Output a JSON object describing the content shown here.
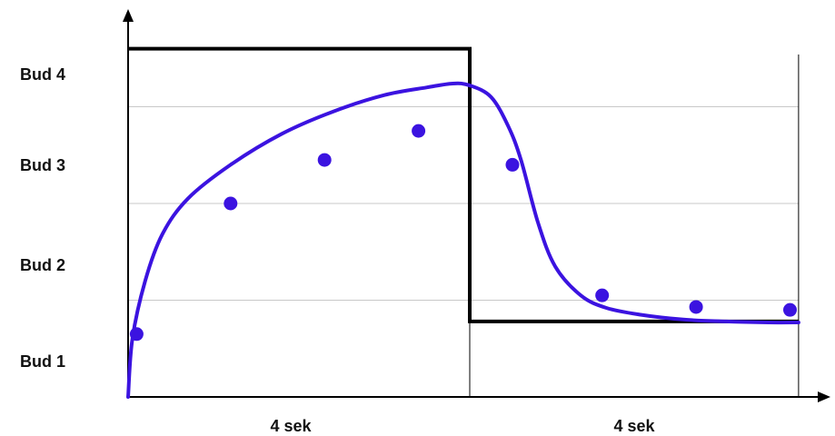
{
  "chart_data": {
    "type": "line",
    "title": "",
    "xlabel": "",
    "ylabel": "",
    "y_tick_labels": [
      "Bud 1",
      "Bud 2",
      "Bud 3",
      "Bud 4"
    ],
    "x_segment_labels": [
      "4 sek",
      "4 sek"
    ],
    "xlim": [
      0,
      8
    ],
    "ylim": [
      0,
      4
    ],
    "grid": true,
    "series": [
      {
        "kind": "step",
        "color": "#000000",
        "points": [
          [
            0,
            3.6
          ],
          [
            4,
            3.6
          ],
          [
            4,
            0.78
          ],
          [
            7.85,
            0.78
          ]
        ]
      },
      {
        "kind": "smooth",
        "color": "#3b13e0",
        "curve": [
          [
            0,
            0
          ],
          [
            0.05,
            0.6
          ],
          [
            0.2,
            1.2
          ],
          [
            0.4,
            1.68
          ],
          [
            0.7,
            2.05
          ],
          [
            1.2,
            2.4
          ],
          [
            1.8,
            2.72
          ],
          [
            2.4,
            2.95
          ],
          [
            3.0,
            3.12
          ],
          [
            3.5,
            3.2
          ],
          [
            3.8,
            3.24
          ],
          [
            4.0,
            3.22
          ],
          [
            4.25,
            3.1
          ],
          [
            4.45,
            2.8
          ],
          [
            4.6,
            2.45
          ],
          [
            4.8,
            1.8
          ],
          [
            5.0,
            1.35
          ],
          [
            5.3,
            1.05
          ],
          [
            5.6,
            0.92
          ],
          [
            6.0,
            0.85
          ],
          [
            6.5,
            0.8
          ],
          [
            7.0,
            0.78
          ],
          [
            7.5,
            0.77
          ],
          [
            7.85,
            0.77
          ]
        ],
        "markers": [
          [
            0.1,
            0.65
          ],
          [
            1.2,
            2.0
          ],
          [
            2.3,
            2.45
          ],
          [
            3.4,
            2.75
          ],
          [
            4.5,
            2.4
          ],
          [
            5.55,
            1.05
          ],
          [
            6.65,
            0.93
          ],
          [
            7.75,
            0.9
          ]
        ]
      }
    ]
  }
}
